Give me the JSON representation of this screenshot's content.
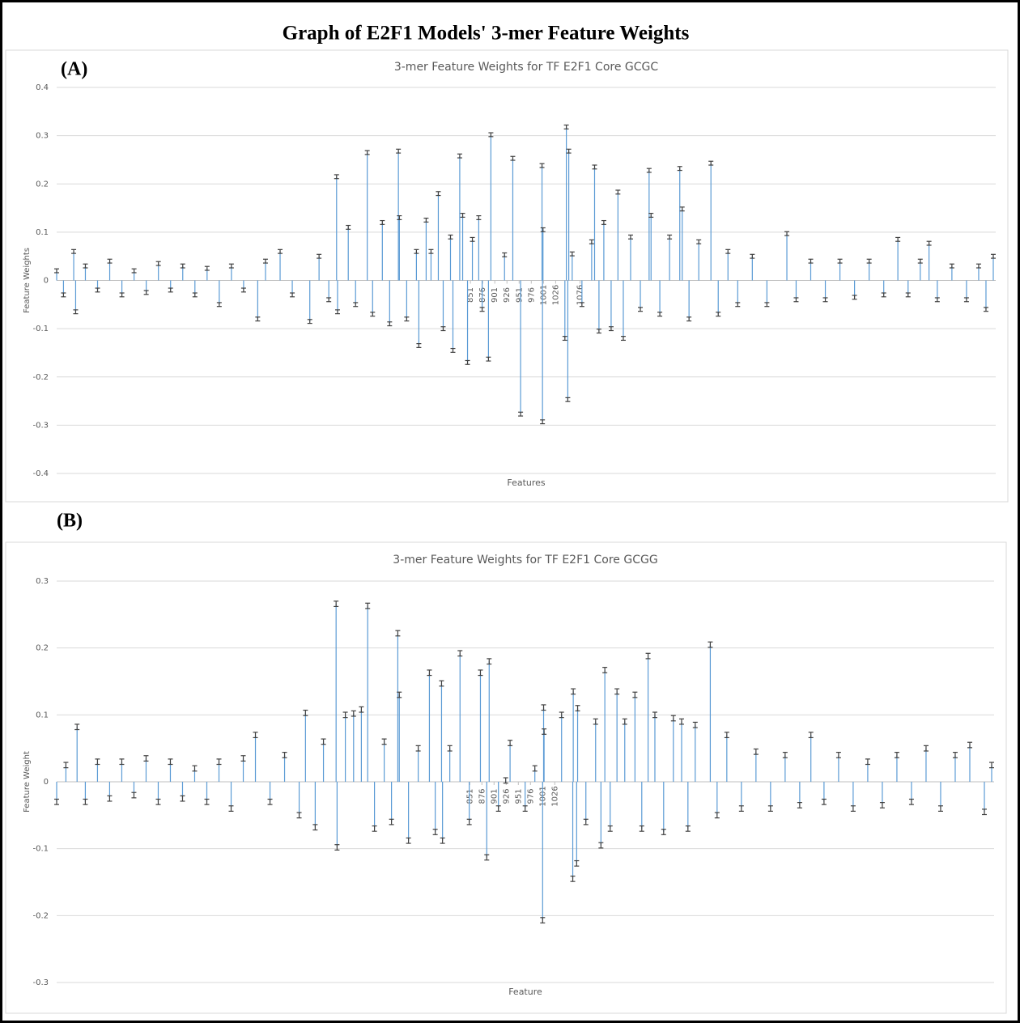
{
  "title": "Graph of E2F1 Models' 3-mer Feature Weights",
  "chart_data": [
    {
      "type": "bar",
      "panel_label": "(A)",
      "title": "3-mer Feature Weights for TF E2F1 Core GCGC",
      "x_label": "Features",
      "y_label": "Feature Weights",
      "color": "#5b9bd5",
      "error_color": "#404040",
      "grid": true,
      "xlim": [
        1,
        1930
      ],
      "xticks": [
        851,
        876,
        901,
        926,
        951,
        976,
        1001,
        1026,
        1076
      ],
      "ylim": [
        -0.4,
        0.4
      ],
      "yticks": [
        0.4,
        0.3,
        0.2,
        0.1,
        0,
        -0.1,
        -0.2,
        -0.3,
        -0.4
      ],
      "error": 0.004,
      "x": [
        1,
        15,
        36,
        40,
        60,
        85,
        110,
        135,
        160,
        185,
        210,
        235,
        260,
        285,
        310,
        335,
        360,
        385,
        414,
        430,
        460,
        485,
        521,
        540,
        560,
        576,
        578,
        600,
        615,
        639,
        650,
        670,
        685,
        703,
        705,
        720,
        740,
        745,
        760,
        770,
        785,
        795,
        810,
        815,
        829,
        835,
        845,
        855,
        868,
        875,
        888,
        893,
        921,
        938,
        954,
        998,
        999,
        1000,
        1045,
        1048,
        1051,
        1053,
        1060,
        1080,
        1100,
        1106,
        1115,
        1125,
        1140,
        1154,
        1165,
        1180,
        1200,
        1218,
        1222,
        1240,
        1260,
        1281,
        1286,
        1300,
        1320,
        1345,
        1360,
        1380,
        1400,
        1430,
        1460,
        1501,
        1520,
        1550,
        1580,
        1610,
        1640,
        1670,
        1700,
        1729,
        1750,
        1775,
        1793,
        1810,
        1840,
        1870,
        1895,
        1910,
        1925
      ],
      "values": [
        0.02,
        -0.03,
        0.06,
        -0.065,
        0.03,
        -0.02,
        0.04,
        -0.03,
        0.02,
        -0.025,
        0.035,
        -0.02,
        0.03,
        -0.03,
        0.025,
        -0.05,
        0.03,
        -0.02,
        -0.08,
        0.04,
        0.06,
        -0.03,
        -0.085,
        0.05,
        -0.04,
        0.215,
        -0.065,
        0.11,
        -0.05,
        0.265,
        -0.07,
        0.12,
        -0.09,
        0.268,
        0.13,
        -0.08,
        0.06,
        -0.135,
        0.125,
        0.06,
        0.18,
        -0.1,
        0.09,
        -0.145,
        0.258,
        0.135,
        -0.17,
        0.085,
        0.13,
        -0.06,
        -0.163,
        0.302,
        0.053,
        0.253,
        -0.277,
        0.238,
        -0.293,
        0.105,
        -0.12,
        0.318,
        -0.247,
        0.268,
        0.055,
        -0.05,
        0.08,
        0.235,
        -0.105,
        0.12,
        -0.1,
        0.183,
        -0.12,
        0.09,
        -0.06,
        0.228,
        0.135,
        -0.07,
        0.09,
        0.232,
        0.148,
        -0.08,
        0.08,
        0.243,
        -0.07,
        0.06,
        -0.05,
        0.05,
        -0.05,
        0.097,
        -0.04,
        0.04,
        -0.04,
        0.04,
        -0.035,
        0.04,
        -0.03,
        0.085,
        -0.03,
        0.04,
        0.077,
        -0.04,
        0.03,
        -0.04,
        0.03,
        -0.06,
        0.05
      ]
    },
    {
      "type": "bar",
      "panel_label": "(B)",
      "title": "3-mer Feature Weights for TF E2F1 Core GCGG",
      "x_label": "Feature",
      "y_label": "Feature Weight",
      "color": "#5b9bd5",
      "error_color": "#404040",
      "grid": true,
      "xlim": [
        1,
        1930
      ],
      "xticks": [
        851,
        876,
        901,
        926,
        951,
        976,
        1001,
        1026
      ],
      "ylim": [
        -0.3,
        0.3
      ],
      "yticks": [
        0.3,
        0.2,
        0.1,
        0,
        -0.1,
        -0.2,
        -0.3
      ],
      "error": 0.004,
      "x": [
        1,
        20,
        43,
        60,
        85,
        110,
        135,
        160,
        185,
        210,
        235,
        260,
        285,
        310,
        335,
        360,
        385,
        410,
        440,
        470,
        500,
        513,
        533,
        550,
        576,
        578,
        595,
        612,
        628,
        641,
        655,
        675,
        690,
        703,
        706,
        725,
        745,
        768,
        780,
        793,
        795,
        810,
        831,
        850,
        873,
        886,
        891,
        910,
        925,
        934,
        965,
        985,
        1001,
        1003,
        1004,
        1040,
        1063,
        1064,
        1071,
        1073,
        1090,
        1110,
        1121,
        1129,
        1140,
        1154,
        1170,
        1191,
        1205,
        1218,
        1232,
        1250,
        1270,
        1287,
        1300,
        1315,
        1346,
        1360,
        1380,
        1410,
        1440,
        1470,
        1500,
        1530,
        1553,
        1580,
        1610,
        1640,
        1670,
        1700,
        1730,
        1760,
        1790,
        1820,
        1850,
        1880,
        1910,
        1925
      ],
      "values": [
        -0.03,
        0.025,
        0.082,
        -0.03,
        0.03,
        -0.025,
        0.03,
        -0.02,
        0.035,
        -0.03,
        0.03,
        -0.025,
        0.02,
        -0.03,
        0.03,
        -0.04,
        0.035,
        0.07,
        -0.03,
        0.04,
        -0.05,
        0.103,
        -0.068,
        0.06,
        0.266,
        -0.098,
        0.1,
        0.102,
        0.108,
        0.263,
        -0.07,
        0.06,
        -0.06,
        0.222,
        0.13,
        -0.088,
        0.05,
        0.163,
        -0.075,
        0.147,
        -0.088,
        0.05,
        0.192,
        -0.06,
        0.163,
        -0.113,
        0.18,
        -0.04,
        0.002,
        0.058,
        -0.04,
        0.02,
        -0.207,
        0.111,
        0.075,
        0.1,
        -0.145,
        0.135,
        -0.122,
        0.11,
        -0.06,
        0.09,
        -0.095,
        0.167,
        -0.07,
        0.135,
        0.09,
        0.13,
        -0.07,
        0.188,
        0.1,
        -0.075,
        0.095,
        0.09,
        -0.07,
        0.085,
        0.205,
        -0.05,
        0.07,
        -0.04,
        0.045,
        -0.04,
        0.04,
        -0.035,
        0.07,
        -0.03,
        0.04,
        -0.04,
        0.03,
        -0.035,
        0.04,
        -0.03,
        0.05,
        -0.04,
        0.04,
        0.055,
        -0.045,
        0.025
      ]
    }
  ]
}
